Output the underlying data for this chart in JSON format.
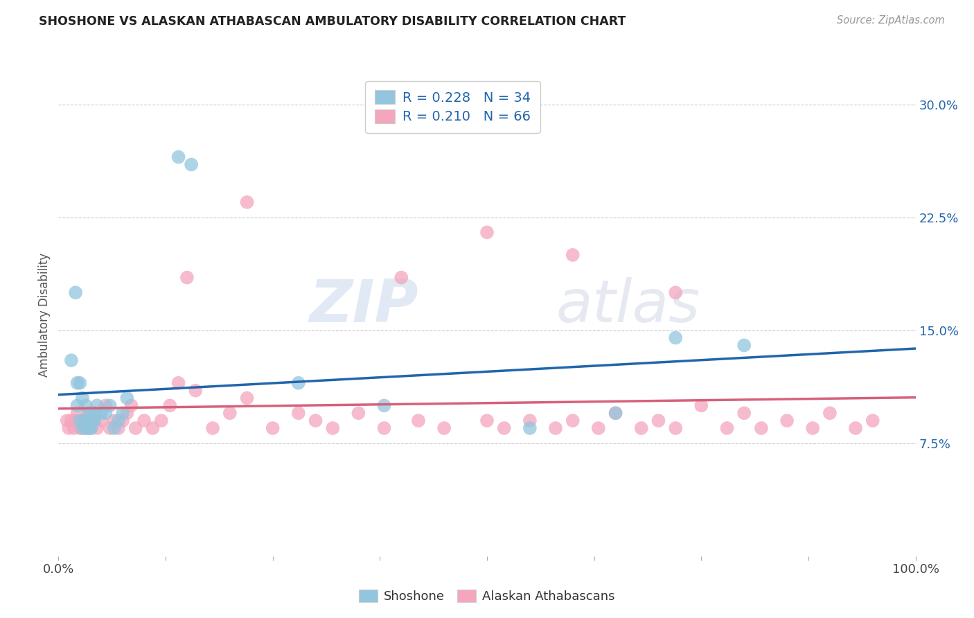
{
  "title": "SHOSHONE VS ALASKAN ATHABASCAN AMBULATORY DISABILITY CORRELATION CHART",
  "source": "Source: ZipAtlas.com",
  "ylabel": "Ambulatory Disability",
  "shoshone_R": "R = 0.228",
  "shoshone_N": "N = 34",
  "athabascan_R": "R = 0.210",
  "athabascan_N": "N = 66",
  "shoshone_color": "#92c5de",
  "athabascan_color": "#f4a6bd",
  "shoshone_line_color": "#2166ac",
  "athabascan_line_color": "#d6617a",
  "background_color": "#ffffff",
  "watermark_zip": "ZIP",
  "watermark_atlas": "atlas",
  "xlim": [
    0.0,
    1.0
  ],
  "ylim": [
    0.0,
    0.32
  ],
  "yticks": [
    0.075,
    0.15,
    0.225,
    0.3
  ],
  "ytick_labels": [
    "7.5%",
    "15.0%",
    "22.5%",
    "30.0%"
  ],
  "shoshone_x": [
    0.015,
    0.02,
    0.022,
    0.025,
    0.025,
    0.028,
    0.03,
    0.032,
    0.033,
    0.035,
    0.037,
    0.038,
    0.04,
    0.042,
    0.045,
    0.05,
    0.055,
    0.06,
    0.065,
    0.07,
    0.075,
    0.08,
    0.14,
    0.155,
    0.28,
    0.38,
    0.55,
    0.65,
    0.72,
    0.8,
    0.022,
    0.028,
    0.035,
    0.042
  ],
  "shoshone_y": [
    0.13,
    0.175,
    0.1,
    0.09,
    0.115,
    0.085,
    0.09,
    0.1,
    0.085,
    0.09,
    0.095,
    0.085,
    0.09,
    0.095,
    0.1,
    0.095,
    0.095,
    0.1,
    0.085,
    0.09,
    0.095,
    0.105,
    0.265,
    0.26,
    0.115,
    0.1,
    0.085,
    0.095,
    0.145,
    0.14,
    0.115,
    0.105,
    0.085,
    0.09
  ],
  "athabascan_x": [
    0.01,
    0.012,
    0.015,
    0.018,
    0.02,
    0.022,
    0.025,
    0.028,
    0.03,
    0.032,
    0.035,
    0.038,
    0.04,
    0.042,
    0.045,
    0.05,
    0.055,
    0.06,
    0.065,
    0.07,
    0.075,
    0.08,
    0.085,
    0.09,
    0.1,
    0.11,
    0.12,
    0.13,
    0.14,
    0.16,
    0.18,
    0.2,
    0.22,
    0.25,
    0.28,
    0.3,
    0.32,
    0.35,
    0.38,
    0.42,
    0.45,
    0.5,
    0.52,
    0.55,
    0.58,
    0.6,
    0.63,
    0.65,
    0.68,
    0.7,
    0.72,
    0.75,
    0.78,
    0.8,
    0.82,
    0.85,
    0.88,
    0.9,
    0.93,
    0.95,
    0.15,
    0.22,
    0.4,
    0.5,
    0.6,
    0.72
  ],
  "athabascan_y": [
    0.09,
    0.085,
    0.09,
    0.085,
    0.09,
    0.095,
    0.085,
    0.09,
    0.085,
    0.09,
    0.095,
    0.085,
    0.09,
    0.095,
    0.085,
    0.09,
    0.1,
    0.085,
    0.09,
    0.085,
    0.09,
    0.095,
    0.1,
    0.085,
    0.09,
    0.085,
    0.09,
    0.1,
    0.115,
    0.11,
    0.085,
    0.095,
    0.105,
    0.085,
    0.095,
    0.09,
    0.085,
    0.095,
    0.085,
    0.09,
    0.085,
    0.09,
    0.085,
    0.09,
    0.085,
    0.09,
    0.085,
    0.095,
    0.085,
    0.09,
    0.085,
    0.1,
    0.085,
    0.095,
    0.085,
    0.09,
    0.085,
    0.095,
    0.085,
    0.09,
    0.185,
    0.235,
    0.185,
    0.215,
    0.2,
    0.175
  ]
}
